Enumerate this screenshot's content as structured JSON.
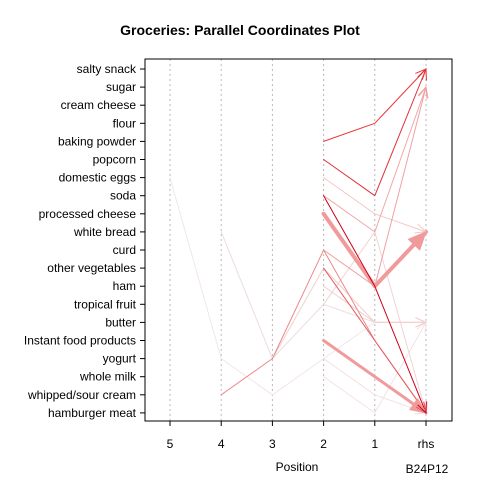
{
  "chart_data": {
    "type": "parallel_coordinates",
    "title": "Groceries: Parallel Coordinates Plot",
    "xlabel": "Position",
    "footer": "B24P12",
    "positions": [
      "5",
      "4",
      "3",
      "2",
      "1",
      "rhs"
    ],
    "items": [
      "salty snack",
      "sugar",
      "cream cheese ",
      "flour",
      "baking powder",
      "popcorn",
      "domestic eggs",
      "soda",
      "processed cheese",
      "white bread",
      "curd",
      "other vegetables",
      "ham",
      "tropical fruit",
      "butter",
      "Instant food products",
      "yogurt",
      "whole milk",
      "whipped/sour cream",
      "hamburger meat"
    ],
    "rules": [
      {
        "path": [
          null,
          null,
          null,
          "baking powder",
          "flour",
          "salty snack"
        ],
        "weight": 1,
        "color": "#e8383b"
      },
      {
        "path": [
          null,
          null,
          null,
          "popcorn",
          "soda",
          "salty snack"
        ],
        "weight": 1,
        "color": "#e0303a"
      },
      {
        "path": [
          null,
          null,
          null,
          "soda",
          "white bread",
          "sugar"
        ],
        "weight": 1,
        "color": "#f0a8aa"
      },
      {
        "path": [
          null,
          null,
          null,
          "soda",
          "ham",
          "hamburger meat"
        ],
        "weight": 1,
        "color": "#cc0018"
      },
      {
        "path": [
          null,
          null,
          null,
          "processed cheese",
          "ham",
          "white bread"
        ],
        "weight": 4,
        "color": "#f19a9c"
      },
      {
        "path": [
          null,
          null,
          null,
          "domestic eggs",
          "processed cheese",
          "white bread"
        ],
        "weight": 1,
        "color": "#f6c8c9"
      },
      {
        "path": [
          null,
          null,
          null,
          "curd",
          "ham",
          "sugar"
        ],
        "weight": 1,
        "color": "#f0a0a2"
      },
      {
        "path": [
          null,
          null,
          null,
          "other vegetables",
          "Instant food products",
          "hamburger meat"
        ],
        "weight": 1,
        "color": "#e8585c"
      },
      {
        "path": [
          null,
          null,
          null,
          "Instant food products",
          "whole milk",
          "hamburger meat"
        ],
        "weight": 3,
        "color": "#f19a9c"
      },
      {
        "path": [
          null,
          "whipped/sour cream",
          "yogurt",
          "curd",
          "Instant food products",
          "hamburger meat"
        ],
        "weight": 1,
        "color": "#ec8a8c"
      },
      {
        "path": [
          null,
          "white bread",
          "yogurt",
          "tropical fruit",
          "butter",
          "butter"
        ],
        "weight": 1,
        "color": "#eedcdc"
      },
      {
        "path": [
          "domestic eggs",
          "yogurt",
          "whipped/sour cream",
          "yogurt",
          "butter",
          "butter"
        ],
        "weight": 1,
        "color": "#f2e6e6"
      },
      {
        "path": [
          null,
          null,
          "yogurt",
          "other vegetables",
          "butter",
          "butter"
        ],
        "weight": 1,
        "color": "#f0d0d0"
      },
      {
        "path": [
          null,
          null,
          null,
          "ham",
          "butter",
          "butter"
        ],
        "weight": 1,
        "color": "#efd2d2"
      },
      {
        "path": [
          null,
          null,
          null,
          "whole milk",
          "hamburger meat",
          "butter"
        ],
        "weight": 1,
        "color": "#f3e3e3"
      },
      {
        "path": [
          null,
          null,
          null,
          "yogurt",
          "whipped/sour cream",
          "hamburger meat"
        ],
        "weight": 1,
        "color": "#f5e0e0"
      },
      {
        "path": [
          null,
          null,
          null,
          "tropical fruit",
          "white bread",
          "hamburger meat"
        ],
        "weight": 1,
        "color": "#f0d4d4"
      }
    ]
  }
}
